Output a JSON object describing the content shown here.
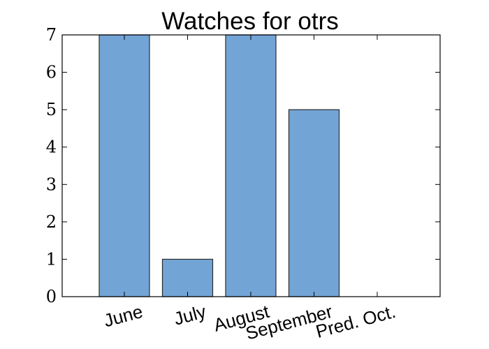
{
  "chart_data": {
    "type": "bar",
    "title": "Watches for otrs",
    "categories": [
      "June",
      "July",
      "August",
      "September",
      "Pred. Oct."
    ],
    "values": [
      7,
      1,
      7,
      5,
      0
    ],
    "xlabel": "",
    "ylabel": "",
    "ylim": [
      0,
      7
    ],
    "yticks": [
      "0",
      "1",
      "2",
      "3",
      "4",
      "5",
      "6",
      "7"
    ],
    "grid": false,
    "legend": "none",
    "bar_color": "#72a5d6",
    "edge_color": "#2b2b2b"
  }
}
